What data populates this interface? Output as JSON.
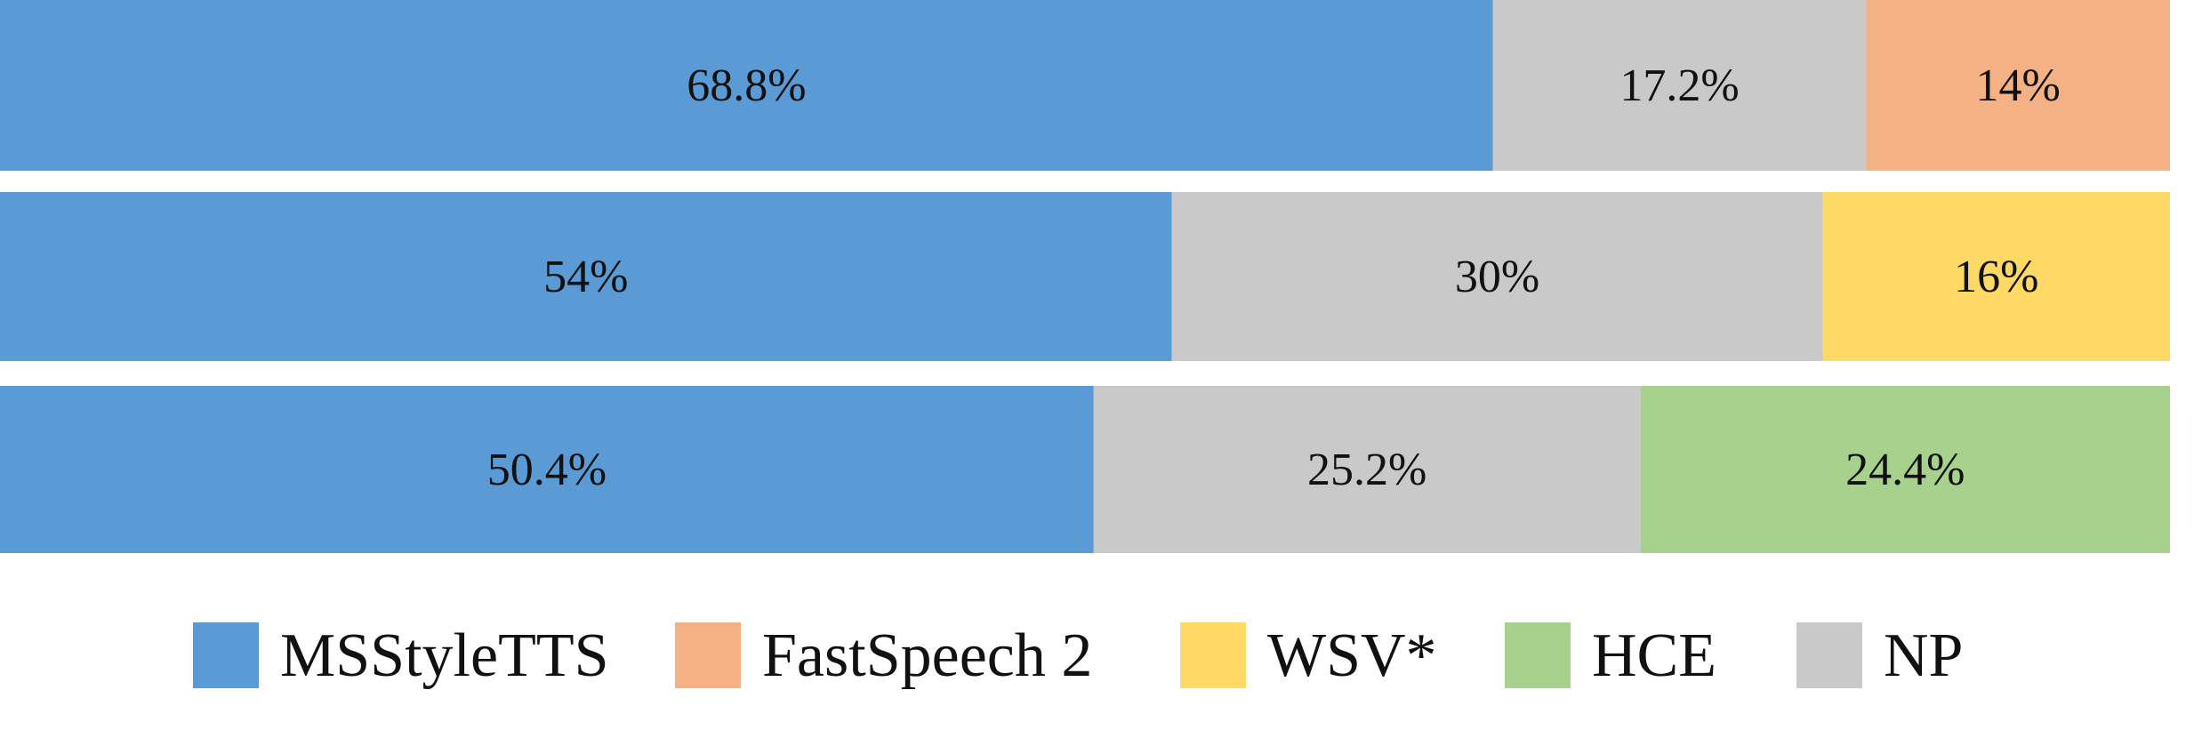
{
  "chart_data": {
    "type": "bar",
    "orientation": "horizontal",
    "stacked": true,
    "unit": "%",
    "xlim": [
      0,
      100
    ],
    "grid": false,
    "legend_position": "bottom",
    "title": "",
    "xlabel": "",
    "ylabel": "",
    "categories": [
      "",
      "",
      ""
    ],
    "bars": [
      {
        "segments": [
          {
            "series": "MSStyleTTS",
            "value": 68.8,
            "label": "68.8%"
          },
          {
            "series": "NP",
            "value": 17.2,
            "label": "17.2%"
          },
          {
            "series": "FastSpeech 2",
            "value": 14,
            "label": "14%"
          }
        ]
      },
      {
        "segments": [
          {
            "series": "MSStyleTTS",
            "value": 54,
            "label": "54%"
          },
          {
            "series": "NP",
            "value": 30,
            "label": "30%"
          },
          {
            "series": "WSV*",
            "value": 16,
            "label": "16%"
          }
        ]
      },
      {
        "segments": [
          {
            "series": "MSStyleTTS",
            "value": 50.4,
            "label": "50.4%"
          },
          {
            "series": "NP",
            "value": 25.2,
            "label": "25.2%"
          },
          {
            "series": "HCE",
            "value": 24.4,
            "label": "24.4%"
          }
        ]
      }
    ],
    "legend": [
      {
        "name": "MSStyleTTS",
        "color": "#5b9bd5"
      },
      {
        "name": "FastSpeech 2",
        "color": "#f4b183"
      },
      {
        "name": "WSV*",
        "color": "#ffd966"
      },
      {
        "name": "HCE",
        "color": "#a9d18e"
      },
      {
        "name": "NP",
        "color": "#c9c9c9"
      }
    ]
  }
}
